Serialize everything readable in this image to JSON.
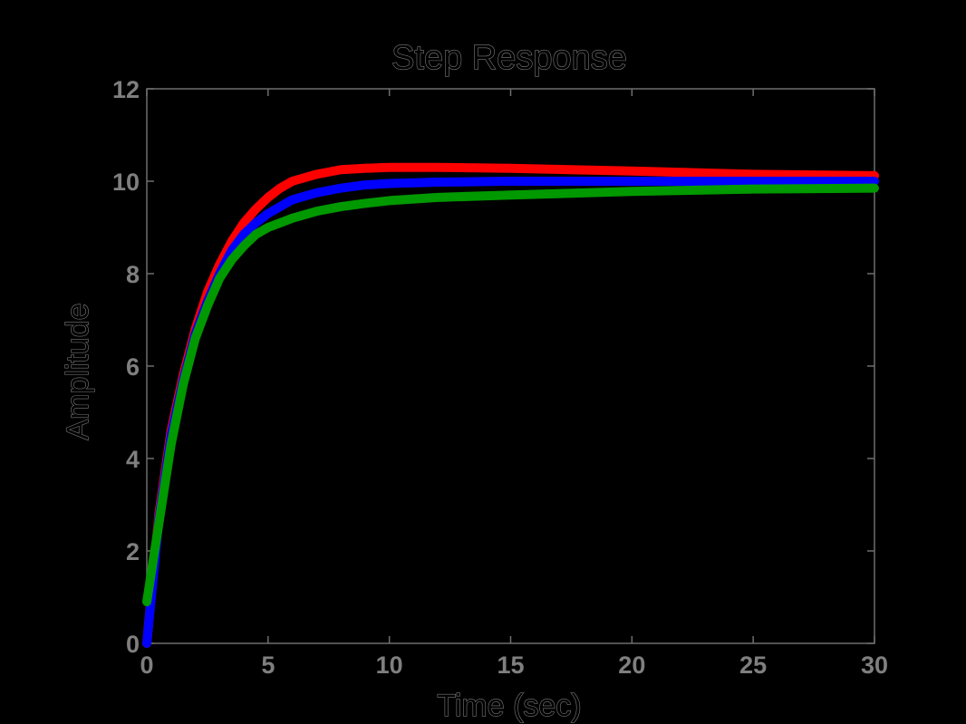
{
  "chart_data": {
    "type": "line",
    "title": "Step Response",
    "xlabel": "Time (sec)",
    "ylabel": "Amplitude",
    "xlim": [
      0,
      30
    ],
    "ylim": [
      0,
      12
    ],
    "xticks": [
      "0",
      "5",
      "10",
      "15",
      "20",
      "25",
      "30"
    ],
    "yticks": [
      "0",
      "2",
      "4",
      "6",
      "8",
      "10",
      "12"
    ],
    "grid": false,
    "x": [
      0,
      0.5,
      1,
      1.5,
      2,
      2.5,
      3,
      3.5,
      4,
      4.5,
      5,
      5.5,
      6,
      7,
      8,
      9,
      10,
      12,
      15,
      20,
      25,
      30
    ],
    "series": [
      {
        "color": "#ff0000",
        "values": [
          0,
          2.8,
          4.6,
          5.8,
          6.8,
          7.6,
          8.2,
          8.7,
          9.1,
          9.4,
          9.65,
          9.85,
          10.0,
          10.15,
          10.25,
          10.28,
          10.3,
          10.3,
          10.28,
          10.22,
          10.15,
          10.12
        ]
      },
      {
        "color": "#0000ff",
        "values": [
          0,
          2.7,
          4.5,
          5.7,
          6.7,
          7.4,
          8.0,
          8.5,
          8.85,
          9.1,
          9.3,
          9.45,
          9.6,
          9.75,
          9.85,
          9.92,
          9.95,
          9.98,
          10.0,
          10.0,
          10.0,
          10.0
        ]
      },
      {
        "color": "#009900",
        "values": [
          0.9,
          2.6,
          4.3,
          5.6,
          6.6,
          7.3,
          7.9,
          8.3,
          8.6,
          8.85,
          9.0,
          9.1,
          9.2,
          9.35,
          9.45,
          9.52,
          9.58,
          9.65,
          9.7,
          9.78,
          9.83,
          9.85
        ]
      }
    ]
  }
}
